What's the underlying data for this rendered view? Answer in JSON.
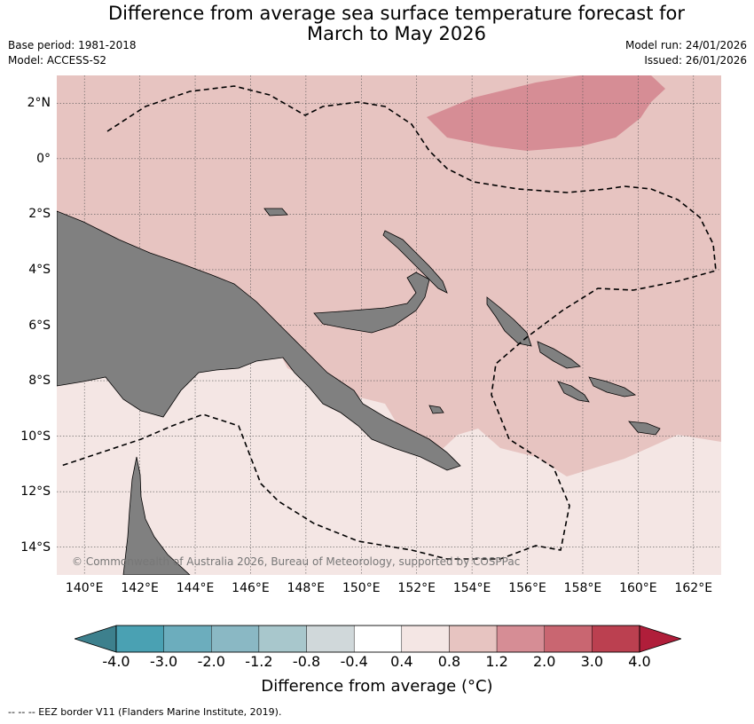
{
  "title": {
    "line1": "Difference from average sea surface temperature forecast for",
    "line2": "March to May 2026"
  },
  "meta_left": {
    "base_period": "Base period: 1981-2018",
    "model": "Model: ACCESS-S2"
  },
  "meta_right": {
    "model_run": "Model run: 24/01/2026",
    "issued": "Issued: 26/01/2026"
  },
  "copyright": "© Commonwealth of Australia 2026, Bureau of Meteorology, supported by COSPPac",
  "map": {
    "lon_range": [
      139,
      163
    ],
    "lat_range": [
      -15,
      3
    ],
    "lat_ticks": [
      "2°N",
      "0°",
      "2°S",
      "4°S",
      "6°S",
      "8°S",
      "10°S",
      "12°S",
      "14°S"
    ],
    "lon_ticks": [
      "140°E",
      "142°E",
      "144°E",
      "146°E",
      "148°E",
      "150°E",
      "152°E",
      "154°E",
      "156°E",
      "158°E",
      "160°E",
      "162°E"
    ],
    "colors": {
      "land": "#808080",
      "anomaly_0_4_0_8": "#f4e6e4",
      "anomaly_0_8_1_2": "#e7c4c1",
      "anomaly_1_2_2_0": "#d68d95"
    }
  },
  "colorbar": {
    "labels": [
      "-4.0",
      "-3.0",
      "-2.0",
      "-1.2",
      "-0.8",
      "-0.4",
      "0.4",
      "0.8",
      "1.2",
      "2.0",
      "3.0",
      "4.0"
    ],
    "colors": [
      "#3d808d",
      "#4aa1b3",
      "#6cadbd",
      "#8ab8c4",
      "#a8c7cc",
      "#d0d8da",
      "#ffffff",
      "#f4e6e4",
      "#e7c4c1",
      "#d68d95",
      "#c96671",
      "#bb4050",
      "#b01e3a"
    ],
    "title": "Difference from average (°C)"
  },
  "footnote": "--  --  -- EEZ border V11 (Flanders Marine Institute, 2019)."
}
